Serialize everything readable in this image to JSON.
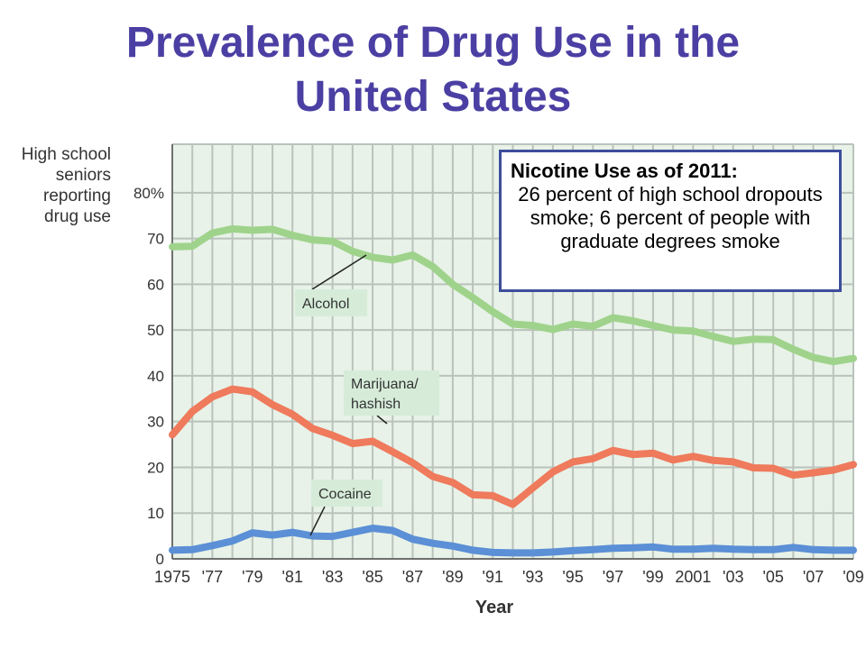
{
  "title_line1": "Prevalence of Drug Use in the",
  "title_line2": "United States",
  "ylabel_lines": [
    "High school",
    "seniors",
    "reporting",
    "drug use"
  ],
  "callout": {
    "heading": "Nicotine Use as of 2011:",
    "body": "26 percent of high school dropouts smoke; 6 percent of people with graduate degrees smoke",
    "border_color": "#3e4e9c"
  },
  "chart_data": {
    "type": "line",
    "xlabel": "Year",
    "ylabel": "High school seniors reporting drug use",
    "ylim": [
      0,
      85
    ],
    "xlim": [
      1975,
      2009
    ],
    "grid": true,
    "y_ticks": [
      "0",
      "10",
      "20",
      "30",
      "40",
      "50",
      "60",
      "70",
      "80%"
    ],
    "y_tick_values": [
      0,
      10,
      20,
      30,
      40,
      50,
      60,
      70,
      80
    ],
    "x_ticks": [
      "1975",
      "'77",
      "'79",
      "'81",
      "'83",
      "'85",
      "'87",
      "'89",
      "'91",
      "'93",
      "'95",
      "'97",
      "'99",
      "2001",
      "'03",
      "'05",
      "'07",
      "'09"
    ],
    "x_tick_values": [
      1975,
      1977,
      1979,
      1981,
      1983,
      1985,
      1987,
      1989,
      1991,
      1993,
      1995,
      1997,
      1999,
      2001,
      2003,
      2005,
      2007,
      2009
    ],
    "x": [
      1975,
      1976,
      1977,
      1978,
      1979,
      1980,
      1981,
      1982,
      1983,
      1984,
      1985,
      1986,
      1987,
      1988,
      1989,
      1990,
      1991,
      1992,
      1993,
      1994,
      1995,
      1996,
      1997,
      1998,
      1999,
      2000,
      2001,
      2002,
      2003,
      2004,
      2005,
      2006,
      2007,
      2008,
      2009
    ],
    "series": [
      {
        "name": "Alcohol",
        "color": "#9fd38c",
        "values": [
          68.2,
          68.3,
          71.2,
          72.1,
          71.8,
          72.0,
          70.7,
          69.7,
          69.4,
          67.2,
          65.9,
          65.3,
          66.4,
          63.9,
          60.0,
          57.1,
          54.0,
          51.3,
          51.0,
          50.1,
          51.3,
          50.8,
          52.7,
          52.0,
          51.0,
          50.0,
          49.8,
          48.6,
          47.5,
          48.0,
          47.9,
          45.8,
          44.0,
          43.1,
          43.8
        ]
      },
      {
        "name": "Marijuana/ hashish",
        "color": "#ef7a5c",
        "values": [
          27.1,
          32.2,
          35.4,
          37.1,
          36.5,
          33.7,
          31.6,
          28.5,
          27.0,
          25.2,
          25.7,
          23.4,
          21.0,
          18.0,
          16.7,
          14.0,
          13.8,
          11.9,
          15.5,
          19.0,
          21.2,
          21.9,
          23.7,
          22.8,
          23.1,
          21.6,
          22.4,
          21.5,
          21.2,
          19.9,
          19.8,
          18.3,
          18.8,
          19.4,
          20.6
        ]
      },
      {
        "name": "Cocaine",
        "color": "#5b8fd6",
        "values": [
          1.9,
          2.0,
          2.9,
          3.9,
          5.7,
          5.2,
          5.8,
          5.0,
          4.9,
          5.8,
          6.7,
          6.2,
          4.3,
          3.4,
          2.8,
          1.9,
          1.4,
          1.3,
          1.3,
          1.5,
          1.8,
          2.0,
          2.3,
          2.4,
          2.6,
          2.1,
          2.1,
          2.3,
          2.1,
          2.0,
          2.0,
          2.5,
          2.0,
          1.9,
          1.9
        ]
      }
    ]
  }
}
